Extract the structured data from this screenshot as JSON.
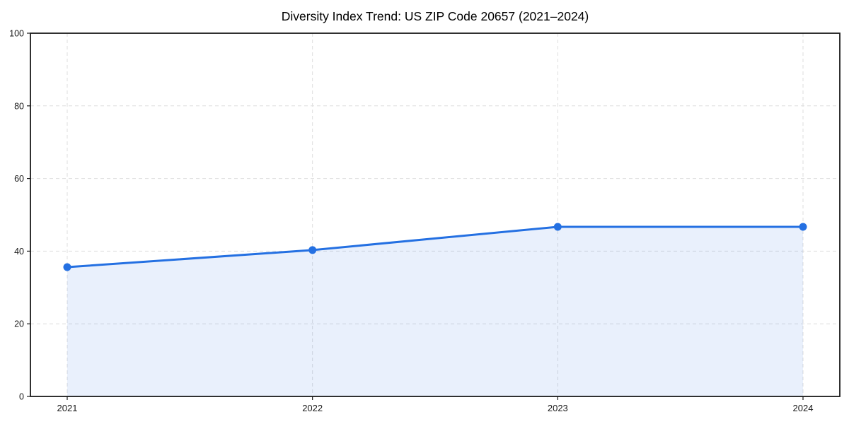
{
  "chart_data": {
    "type": "area",
    "title": "Diversity Index Trend: US ZIP Code 20657 (2021–2024)",
    "categories": [
      "2021",
      "2022",
      "2023",
      "2024"
    ],
    "series": [
      {
        "name": "Diversity Index",
        "values": [
          35.6,
          40.3,
          46.7,
          46.7
        ]
      }
    ],
    "xlabel": "",
    "ylabel": "",
    "ylim": [
      0,
      100
    ],
    "yticks": [
      0,
      20,
      40,
      60,
      80,
      100
    ],
    "grid": "both-dashed",
    "legend": "none",
    "marker": "circle",
    "colors": {
      "line": "#2470e2",
      "marker": "#2470e2",
      "fill": "#2470e2",
      "fill_opacity": 0.1,
      "grid": "#dedede",
      "spine": "#1a1a1a",
      "tick_label": "#1a1a1a",
      "title": "#000000",
      "background": "#ffffff"
    }
  }
}
